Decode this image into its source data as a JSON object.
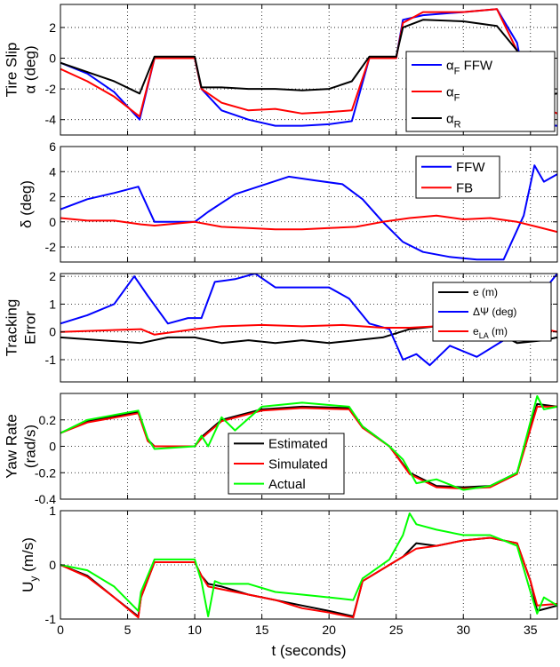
{
  "figure": {
    "xlabel": "t (seconds)",
    "colors": {
      "blue": "#0000ff",
      "red": "#ff0000",
      "black": "#000000",
      "green": "#00ff00",
      "axis": "#000000",
      "grid": "#000000"
    }
  },
  "chart_data": [
    {
      "type": "line",
      "ylabel_lines": [
        "Tire Slip",
        "α (deg)"
      ],
      "xlim": [
        0,
        37
      ],
      "ylim": [
        -5,
        3.5
      ],
      "xticks": [
        0,
        5,
        10,
        15,
        20,
        25,
        30,
        35
      ],
      "yticks": [
        -4,
        -2,
        0,
        2
      ],
      "show_xtick_labels": false,
      "grid": true,
      "legend": "upper-right",
      "series": [
        {
          "name": "αF FFW",
          "label_main": "α",
          "label_sub": "F",
          "label_suffix": " FFW",
          "color": "#0000ff",
          "x": [
            0,
            2,
            4,
            5.9,
            7,
            10,
            10.5,
            12,
            14,
            16,
            18,
            20,
            21.7,
            23,
            25,
            25.5,
            27,
            30,
            32.5,
            34,
            35,
            35.5,
            37
          ],
          "y": [
            -0.3,
            -1.0,
            -2.2,
            -4.0,
            0.0,
            0.0,
            -2.0,
            -3.4,
            -4.0,
            -4.4,
            -4.4,
            -4.3,
            -4.1,
            0.0,
            0.0,
            2.5,
            2.8,
            3.0,
            3.2,
            1.0,
            -3.5,
            -4.3,
            -4.4
          ]
        },
        {
          "name": "αF",
          "label_main": "α",
          "label_sub": "F",
          "label_suffix": "",
          "color": "#ff0000",
          "x": [
            0,
            2,
            4,
            5.9,
            7,
            10,
            10.5,
            12,
            14,
            16,
            18,
            20,
            21.7,
            23,
            25,
            25.5,
            27,
            30,
            32.5,
            34,
            35,
            35.5,
            37
          ],
          "y": [
            -0.7,
            -1.5,
            -2.5,
            -3.8,
            0.0,
            0.0,
            -2.0,
            -2.9,
            -3.4,
            -3.3,
            -3.6,
            -3.5,
            -3.4,
            0.0,
            0.0,
            2.3,
            3.0,
            3.0,
            3.2,
            0.5,
            -4.5,
            -3.0,
            -3.6
          ]
        },
        {
          "name": "αR",
          "label_main": "α",
          "label_sub": "R",
          "label_suffix": "",
          "color": "#000000",
          "x": [
            0,
            2,
            4,
            5.9,
            7,
            10,
            10.5,
            12,
            14,
            16,
            18,
            20,
            21.7,
            23,
            25,
            25.5,
            27,
            30,
            32.5,
            34,
            35,
            35.5,
            37
          ],
          "y": [
            -0.3,
            -0.9,
            -1.5,
            -2.3,
            0.1,
            0.1,
            -1.9,
            -1.9,
            -2.0,
            -2.0,
            -2.1,
            -2.0,
            -1.5,
            0.1,
            0.1,
            2.0,
            2.5,
            2.4,
            2.1,
            0.5,
            -2.5,
            -2.5,
            -2.3
          ]
        }
      ]
    },
    {
      "type": "line",
      "ylabel_lines": [
        "δ (deg)"
      ],
      "xlim": [
        0,
        37
      ],
      "ylim": [
        -3.2,
        6
      ],
      "xticks": [
        0,
        5,
        10,
        15,
        20,
        25,
        30,
        35
      ],
      "yticks": [
        -2,
        0,
        2,
        4,
        6
      ],
      "show_xtick_labels": false,
      "grid": true,
      "legend": "upper-right",
      "series": [
        {
          "name": "FFW",
          "label_main": "FFW",
          "label_sub": "",
          "label_suffix": "",
          "color": "#0000ff",
          "x": [
            0,
            2,
            4,
            5.8,
            7,
            10,
            11,
            13,
            15,
            17,
            19,
            21,
            22.5,
            24,
            25.5,
            27,
            29,
            31,
            33,
            34.5,
            35.3,
            36,
            37
          ],
          "y": [
            1.0,
            1.8,
            2.3,
            2.8,
            0.0,
            0.0,
            0.8,
            2.2,
            2.9,
            3.6,
            3.3,
            3.0,
            1.8,
            0.0,
            -1.6,
            -2.4,
            -2.8,
            -3.0,
            -3.0,
            0.5,
            4.5,
            3.2,
            3.8
          ]
        },
        {
          "name": "FB",
          "label_main": "FB",
          "label_sub": "",
          "label_suffix": "",
          "color": "#ff0000",
          "x": [
            0,
            2,
            4,
            6,
            7,
            10,
            12,
            14,
            16,
            18,
            20,
            22,
            24,
            26,
            28,
            30,
            32,
            34,
            35.5,
            37
          ],
          "y": [
            0.3,
            0.1,
            0.1,
            -0.2,
            -0.3,
            0.0,
            -0.4,
            -0.5,
            -0.6,
            -0.6,
            -0.5,
            -0.4,
            0.0,
            0.3,
            0.5,
            0.2,
            0.3,
            0.0,
            -0.4,
            -0.8
          ]
        }
      ]
    },
    {
      "type": "line",
      "ylabel_lines": [
        "Tracking",
        "Error"
      ],
      "xlim": [
        0,
        37
      ],
      "ylim": [
        -1.8,
        2.1
      ],
      "xticks": [
        0,
        5,
        10,
        15,
        20,
        25,
        30,
        35
      ],
      "yticks": [
        -1,
        0,
        1,
        2
      ],
      "show_xtick_labels": false,
      "grid": true,
      "legend": "upper-right",
      "series": [
        {
          "name": "e (m)",
          "label_main": "e (m)",
          "label_sub": "",
          "label_suffix": "",
          "color": "#000000",
          "x": [
            0,
            3,
            6,
            8,
            10,
            12,
            14,
            16,
            18,
            20,
            22,
            24,
            26,
            28,
            30,
            32,
            34,
            36,
            37
          ],
          "y": [
            -0.2,
            -0.3,
            -0.4,
            -0.2,
            -0.2,
            -0.4,
            -0.3,
            -0.4,
            -0.3,
            -0.4,
            -0.3,
            -0.2,
            0.1,
            0.2,
            0.2,
            0.1,
            -0.4,
            -0.3,
            -0.2
          ]
        },
        {
          "name": "ΔΨ (deg)",
          "label_main": "ΔΨ (deg)",
          "label_sub": "",
          "label_suffix": "",
          "color": "#0000ff",
          "x": [
            0,
            2,
            4,
            5.5,
            6.5,
            8,
            9.5,
            10.5,
            11.5,
            13,
            14.5,
            16,
            18,
            20,
            21.5,
            23,
            24.5,
            25.5,
            26.5,
            27.5,
            29,
            31,
            33,
            34.5,
            35.5,
            36,
            37
          ],
          "y": [
            0.3,
            0.6,
            1.0,
            2.0,
            1.3,
            0.3,
            0.5,
            0.5,
            1.8,
            1.9,
            2.1,
            1.6,
            1.6,
            1.6,
            1.2,
            0.3,
            0.1,
            -1.0,
            -0.8,
            -1.2,
            -0.5,
            -0.9,
            -0.3,
            0.0,
            1.0,
            1.5,
            2.1
          ]
        },
        {
          "name": "eLA (m)",
          "label_main": "e",
          "label_sub": "LA",
          "label_suffix": " (m)",
          "color": "#ff0000",
          "x": [
            0,
            3,
            6,
            7,
            10,
            12,
            15,
            18,
            21,
            24,
            26,
            28,
            30,
            32,
            34,
            35,
            37
          ],
          "y": [
            0.0,
            0.05,
            0.1,
            -0.1,
            0.1,
            0.2,
            0.25,
            0.2,
            0.25,
            0.15,
            0.15,
            0.2,
            0.15,
            0.1,
            0.2,
            0.2,
            0.0
          ]
        }
      ]
    },
    {
      "type": "line",
      "ylabel_lines": [
        "Yaw Rate",
        "(rad/s)"
      ],
      "xlim": [
        0,
        37
      ],
      "ylim": [
        -0.4,
        0.4
      ],
      "xticks": [
        0,
        5,
        10,
        15,
        20,
        25,
        30,
        35
      ],
      "yticks": [
        -0.4,
        -0.2,
        0,
        0.2
      ],
      "show_xtick_labels": false,
      "grid": true,
      "legend": "lower-center",
      "series": [
        {
          "name": "Estimated",
          "label_main": "Estimated",
          "label_sub": "",
          "label_suffix": "",
          "color": "#000000",
          "x": [
            0,
            2,
            5.8,
            6.5,
            7,
            10,
            10.5,
            12,
            15,
            18,
            21.5,
            22.5,
            24.5,
            26,
            28,
            30,
            32,
            34,
            35.5,
            37
          ],
          "y": [
            0.1,
            0.19,
            0.26,
            0.05,
            0.0,
            0.0,
            0.07,
            0.2,
            0.28,
            0.3,
            0.29,
            0.15,
            0.0,
            -0.2,
            -0.3,
            -0.31,
            -0.3,
            -0.2,
            0.32,
            0.3
          ]
        },
        {
          "name": "Simulated",
          "label_main": "Simulated",
          "label_sub": "",
          "label_suffix": "",
          "color": "#ff0000",
          "x": [
            0,
            2,
            5.8,
            6.5,
            7,
            10,
            10.5,
            12,
            15,
            18,
            21.5,
            22.5,
            24.5,
            26,
            28,
            30,
            32,
            34,
            35.5,
            37
          ],
          "y": [
            0.1,
            0.18,
            0.25,
            0.04,
            0.0,
            0.0,
            0.06,
            0.19,
            0.27,
            0.29,
            0.28,
            0.14,
            0.0,
            -0.21,
            -0.31,
            -0.32,
            -0.31,
            -0.21,
            0.3,
            0.3
          ]
        },
        {
          "name": "Actual",
          "label_main": "Actual",
          "label_sub": "",
          "label_suffix": "",
          "color": "#00ff00",
          "x": [
            0,
            2,
            5.8,
            6.5,
            7,
            10,
            10.5,
            11,
            12,
            13,
            15,
            18,
            21.5,
            22.5,
            24.5,
            25.5,
            26.5,
            28,
            30,
            32,
            34,
            35.5,
            36,
            37
          ],
          "y": [
            0.1,
            0.2,
            0.27,
            0.06,
            -0.02,
            0.0,
            0.08,
            0.0,
            0.22,
            0.12,
            0.3,
            0.33,
            0.3,
            0.15,
            0.0,
            -0.1,
            -0.28,
            -0.25,
            -0.33,
            -0.3,
            -0.2,
            0.38,
            0.28,
            0.3
          ]
        }
      ]
    },
    {
      "type": "line",
      "ylabel_main": "U",
      "ylabel_sub": "y",
      "ylabel_suffix": " (m/s)",
      "xlim": [
        0,
        37
      ],
      "ylim": [
        -1,
        1
      ],
      "xticks": [
        0,
        5,
        10,
        15,
        20,
        25,
        30,
        35
      ],
      "yticks": [
        -1,
        0,
        1
      ],
      "show_xtick_labels": true,
      "grid": true,
      "legend": "none",
      "series": [
        {
          "name": "Estimated",
          "color": "#000000",
          "x": [
            0,
            2,
            4,
            5.8,
            6,
            7,
            10,
            10.5,
            11,
            12,
            14,
            16,
            18,
            20,
            21.8,
            22.5,
            24.5,
            25.5,
            26.5,
            28,
            30,
            32,
            34,
            35,
            35.5,
            37
          ],
          "y": [
            0.0,
            -0.2,
            -0.6,
            -0.95,
            -0.6,
            0.05,
            0.05,
            -0.2,
            -0.35,
            -0.4,
            -0.55,
            -0.65,
            -0.75,
            -0.85,
            -0.95,
            -0.3,
            0.0,
            0.15,
            0.4,
            0.35,
            0.45,
            0.5,
            0.4,
            -0.3,
            -0.85,
            -0.75
          ]
        },
        {
          "name": "Simulated",
          "color": "#ff0000",
          "x": [
            0,
            2,
            4,
            5.8,
            6,
            7,
            10,
            10.5,
            11,
            12,
            14,
            16,
            18,
            20,
            21.8,
            22.5,
            24.5,
            25.5,
            26.5,
            28,
            30,
            32,
            34,
            35,
            35.5,
            37
          ],
          "y": [
            0.0,
            -0.22,
            -0.6,
            -0.97,
            -0.6,
            0.05,
            0.05,
            -0.2,
            -0.4,
            -0.45,
            -0.55,
            -0.65,
            -0.8,
            -0.88,
            -0.97,
            -0.3,
            0.0,
            0.15,
            0.3,
            0.35,
            0.45,
            0.5,
            0.4,
            -0.3,
            -0.75,
            -0.72
          ]
        },
        {
          "name": "Actual",
          "color": "#00ff00",
          "x": [
            0,
            2,
            4,
            5.8,
            6,
            7,
            10,
            10.5,
            11,
            11.5,
            12,
            14,
            16,
            18,
            20,
            21.8,
            22.5,
            24.5,
            25.5,
            26,
            26.5,
            28,
            30,
            32,
            34,
            35,
            35.5,
            36,
            37
          ],
          "y": [
            0.0,
            -0.1,
            -0.4,
            -0.85,
            -0.5,
            0.1,
            0.1,
            -0.3,
            -0.95,
            -0.3,
            -0.35,
            -0.35,
            -0.5,
            -0.55,
            -0.6,
            -0.65,
            -0.25,
            0.1,
            0.55,
            0.95,
            0.75,
            0.65,
            0.55,
            0.55,
            0.35,
            -0.5,
            -0.9,
            -0.6,
            -0.75
          ]
        }
      ]
    }
  ]
}
